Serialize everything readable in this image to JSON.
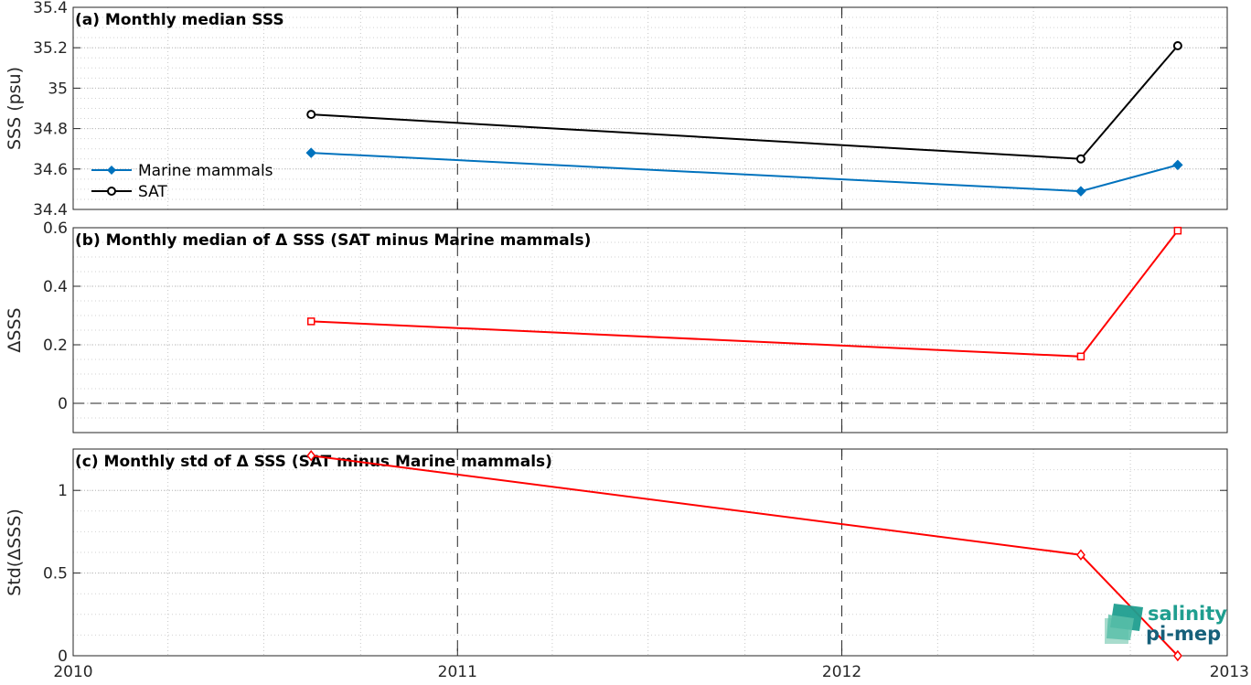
{
  "chart_data": [
    {
      "type": "line",
      "title": "(a) Monthly median SSS",
      "xlabel": "",
      "ylabel": "SSS (psu)",
      "x_ticks": [
        "2010",
        "2011",
        "2012",
        "2013"
      ],
      "xlim": [
        "2010-01-01",
        "2013-01-01"
      ],
      "ylim": [
        34.4,
        35.4
      ],
      "y_ticks": [
        "34.4",
        "34.6",
        "34.8",
        "35",
        "35.2",
        "35.4"
      ],
      "grid": "dotted",
      "legend": "center-left",
      "series": [
        {
          "name": "Marine mammals",
          "color": "#0072BD",
          "marker": "filled-diamond",
          "x": [
            "2010-08-15",
            "2012-08-15",
            "2012-11-15"
          ],
          "values": [
            34.68,
            34.49,
            34.62
          ]
        },
        {
          "name": "SAT",
          "color": "#000000",
          "marker": "open-circle",
          "x": [
            "2010-08-15",
            "2012-08-15",
            "2012-11-15"
          ],
          "values": [
            34.87,
            34.65,
            35.21
          ]
        }
      ]
    },
    {
      "type": "line",
      "title": "(b) Monthly median of Δ SSS (SAT minus Marine mammals)",
      "xlabel": "",
      "ylabel": "ΔSSS",
      "xlim": [
        "2010-01-01",
        "2013-01-01"
      ],
      "ylim": [
        -0.1,
        0.6
      ],
      "y_ticks": [
        "0",
        "0.2",
        "0.4",
        "0.6"
      ],
      "grid": "dotted",
      "zero_line": "dashed",
      "series": [
        {
          "color": "#FF0000",
          "marker": "square",
          "x": [
            "2010-08-15",
            "2012-08-15",
            "2012-11-15"
          ],
          "values": [
            0.28,
            0.16,
            0.59
          ]
        }
      ]
    },
    {
      "type": "line",
      "title": "(c) Monthly std of Δ SSS (SAT minus Marine mammals)",
      "xlabel": "",
      "ylabel": "Std(ΔSSS)",
      "x_ticks": [
        "2010",
        "2011",
        "2012",
        "2013"
      ],
      "xlim": [
        "2010-01-01",
        "2013-01-01"
      ],
      "ylim": [
        0,
        1.25
      ],
      "y_ticks": [
        "0",
        "0.5",
        "1"
      ],
      "grid": "dotted",
      "series": [
        {
          "color": "#FF0000",
          "marker": "open-diamond",
          "x": [
            "2010-08-15",
            "2012-08-15",
            "2012-11-15"
          ],
          "values": [
            1.21,
            0.61,
            0.0
          ]
        }
      ]
    }
  ],
  "logo": {
    "line1": "salinity",
    "line2": "pi-mep",
    "color1": "#1f9e8f",
    "color2": "#16607a"
  }
}
